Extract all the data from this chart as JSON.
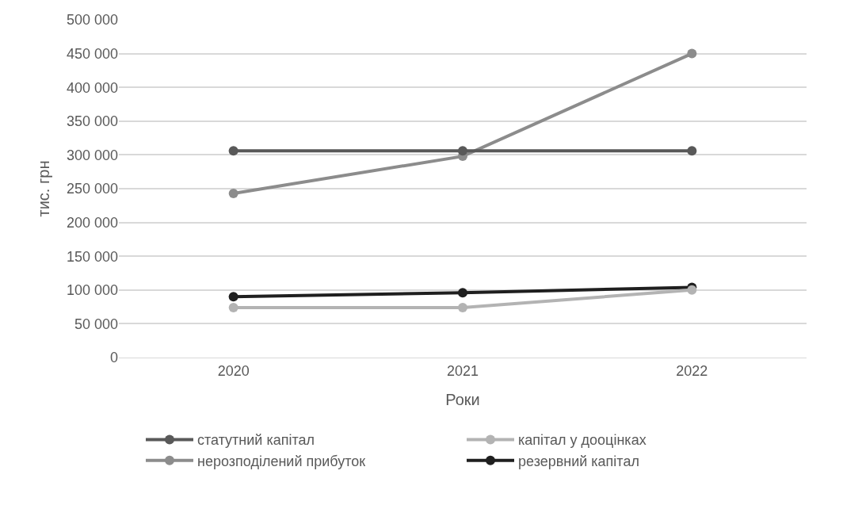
{
  "chart_data": {
    "type": "line",
    "xlabel": "Роки",
    "ylabel": "тис. грн",
    "categories": [
      "2020",
      "2021",
      "2022"
    ],
    "series": [
      {
        "name": "статутний капітал",
        "color": "#595959",
        "values": [
          306000,
          306000,
          306000
        ]
      },
      {
        "name": "капітал у дооцінках",
        "color": "#b3b3b3",
        "values": [
          74000,
          74000,
          100000
        ]
      },
      {
        "name": "нерозподілений прибуток",
        "color": "#8c8c8c",
        "values": [
          243000,
          298000,
          450000
        ]
      },
      {
        "name": "резервний капітал",
        "color": "#1f1f1f",
        "values": [
          90000,
          96000,
          104000
        ]
      }
    ],
    "ylim": [
      0,
      500000
    ],
    "yticks": [
      0,
      {
        "value": 50000,
        "label": "50 000"
      },
      {
        "value": 100000,
        "label": "100 000"
      },
      {
        "value": 150000,
        "label": "150 000"
      },
      {
        "value": 200000,
        "label": "200 000"
      },
      {
        "value": 250000,
        "label": "250 000"
      },
      {
        "value": 300000,
        "label": "300 000"
      },
      {
        "value": 350000,
        "label": "350 000"
      },
      {
        "value": 400000,
        "label": "400 000"
      },
      {
        "value": 450000,
        "label": "450 000"
      },
      {
        "value": 500000,
        "label": "500 000"
      }
    ],
    "grid": "y",
    "legend": "bottom",
    "marker": "circle",
    "line_style": "solid"
  }
}
